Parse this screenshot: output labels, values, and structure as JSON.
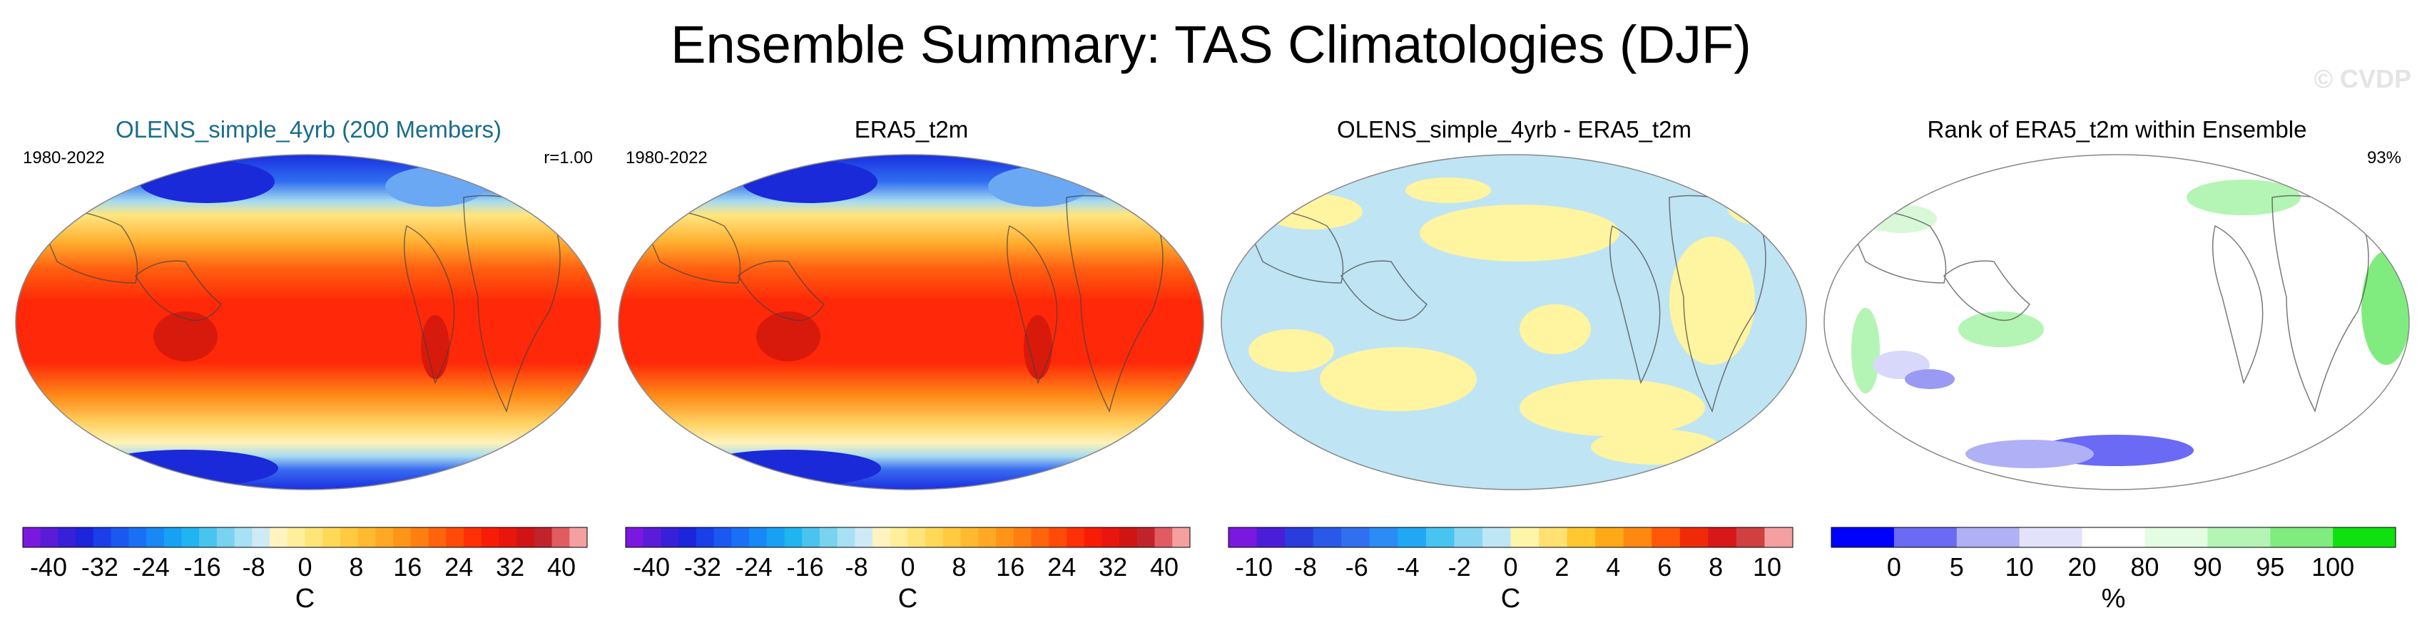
{
  "title": "Ensemble Summary: TAS Climatologies (DJF)",
  "watermark": "© CVDP",
  "panels": [
    {
      "title": "OLENS_simple_4yrb (200 Members)",
      "left_label": "1980-2022",
      "right_label": "r=1.00",
      "map_type": "temperature",
      "cbar": "temp",
      "unit": "C"
    },
    {
      "title": "ERA5_t2m",
      "left_label": "1980-2022",
      "right_label": "",
      "map_type": "temperature",
      "cbar": "temp",
      "unit": "C"
    },
    {
      "title": "OLENS_simple_4yrb - ERA5_t2m",
      "left_label": "",
      "right_label": "",
      "map_type": "difference",
      "cbar": "diff",
      "unit": "C"
    },
    {
      "title": "Rank of ERA5_t2m within Ensemble",
      "left_label": "",
      "right_label": "93%",
      "map_type": "rank",
      "cbar": "rank",
      "unit": "%"
    }
  ],
  "colorbars": {
    "temp": {
      "colors": [
        "#7a18e0",
        "#5a1cd8",
        "#3820d8",
        "#1c24dc",
        "#1a3ee8",
        "#1a58f0",
        "#1a70f4",
        "#1888f4",
        "#18a0f4",
        "#20b4f0",
        "#48c4ee",
        "#78d2f0",
        "#a8e0f4",
        "#cdeaf6",
        "#fff3c0",
        "#ffee9c",
        "#ffe478",
        "#ffd858",
        "#ffca40",
        "#ffba30",
        "#ffa824",
        "#ff9418",
        "#ff7e10",
        "#ff640c",
        "#ff4a08",
        "#ff3006",
        "#f81c06",
        "#e8160c",
        "#d01414",
        "#c0242a",
        "#e05c60",
        "#f4a0a0"
      ],
      "ticks": [
        "-40",
        "-32",
        "-24",
        "-16",
        "-8",
        "0",
        "8",
        "16",
        "24",
        "32",
        "40"
      ],
      "tick_values": [
        -40,
        -32,
        -24,
        -16,
        -8,
        0,
        8,
        16,
        24,
        32,
        40
      ],
      "min": -44,
      "max": 44
    },
    "diff": {
      "colors": [
        "#7a18e0",
        "#4a1ed8",
        "#2a3cdc",
        "#2a58e8",
        "#3070f0",
        "#2a8cf4",
        "#20a8f4",
        "#48c4f0",
        "#88d6f2",
        "#bfe6f4",
        "#fff5a8",
        "#ffe070",
        "#ffc830",
        "#ffa818",
        "#ff8810",
        "#ff5808",
        "#f02a08",
        "#d81818",
        "#d04040",
        "#f4a0a0"
      ],
      "ticks": [
        "-10",
        "-8",
        "-6",
        "-4",
        "-2",
        "0",
        "2",
        "4",
        "6",
        "8",
        "10"
      ],
      "tick_values": [
        -10,
        -8,
        -6,
        -4,
        -2,
        0,
        2,
        4,
        6,
        8,
        10
      ],
      "min": -11,
      "max": 11
    },
    "rank": {
      "colors": [
        "#0000ff",
        "#6a6af4",
        "#b0b0f6",
        "#e2e2fa",
        "#ffffff",
        "#e4fce4",
        "#b4f4b4",
        "#80ec80",
        "#10e010"
      ],
      "ticks": [
        "0",
        "5",
        "10",
        "20",
        "80",
        "90",
        "95",
        "100"
      ],
      "tick_positions": [
        1,
        2,
        3,
        4,
        5,
        6,
        7,
        8
      ]
    }
  }
}
